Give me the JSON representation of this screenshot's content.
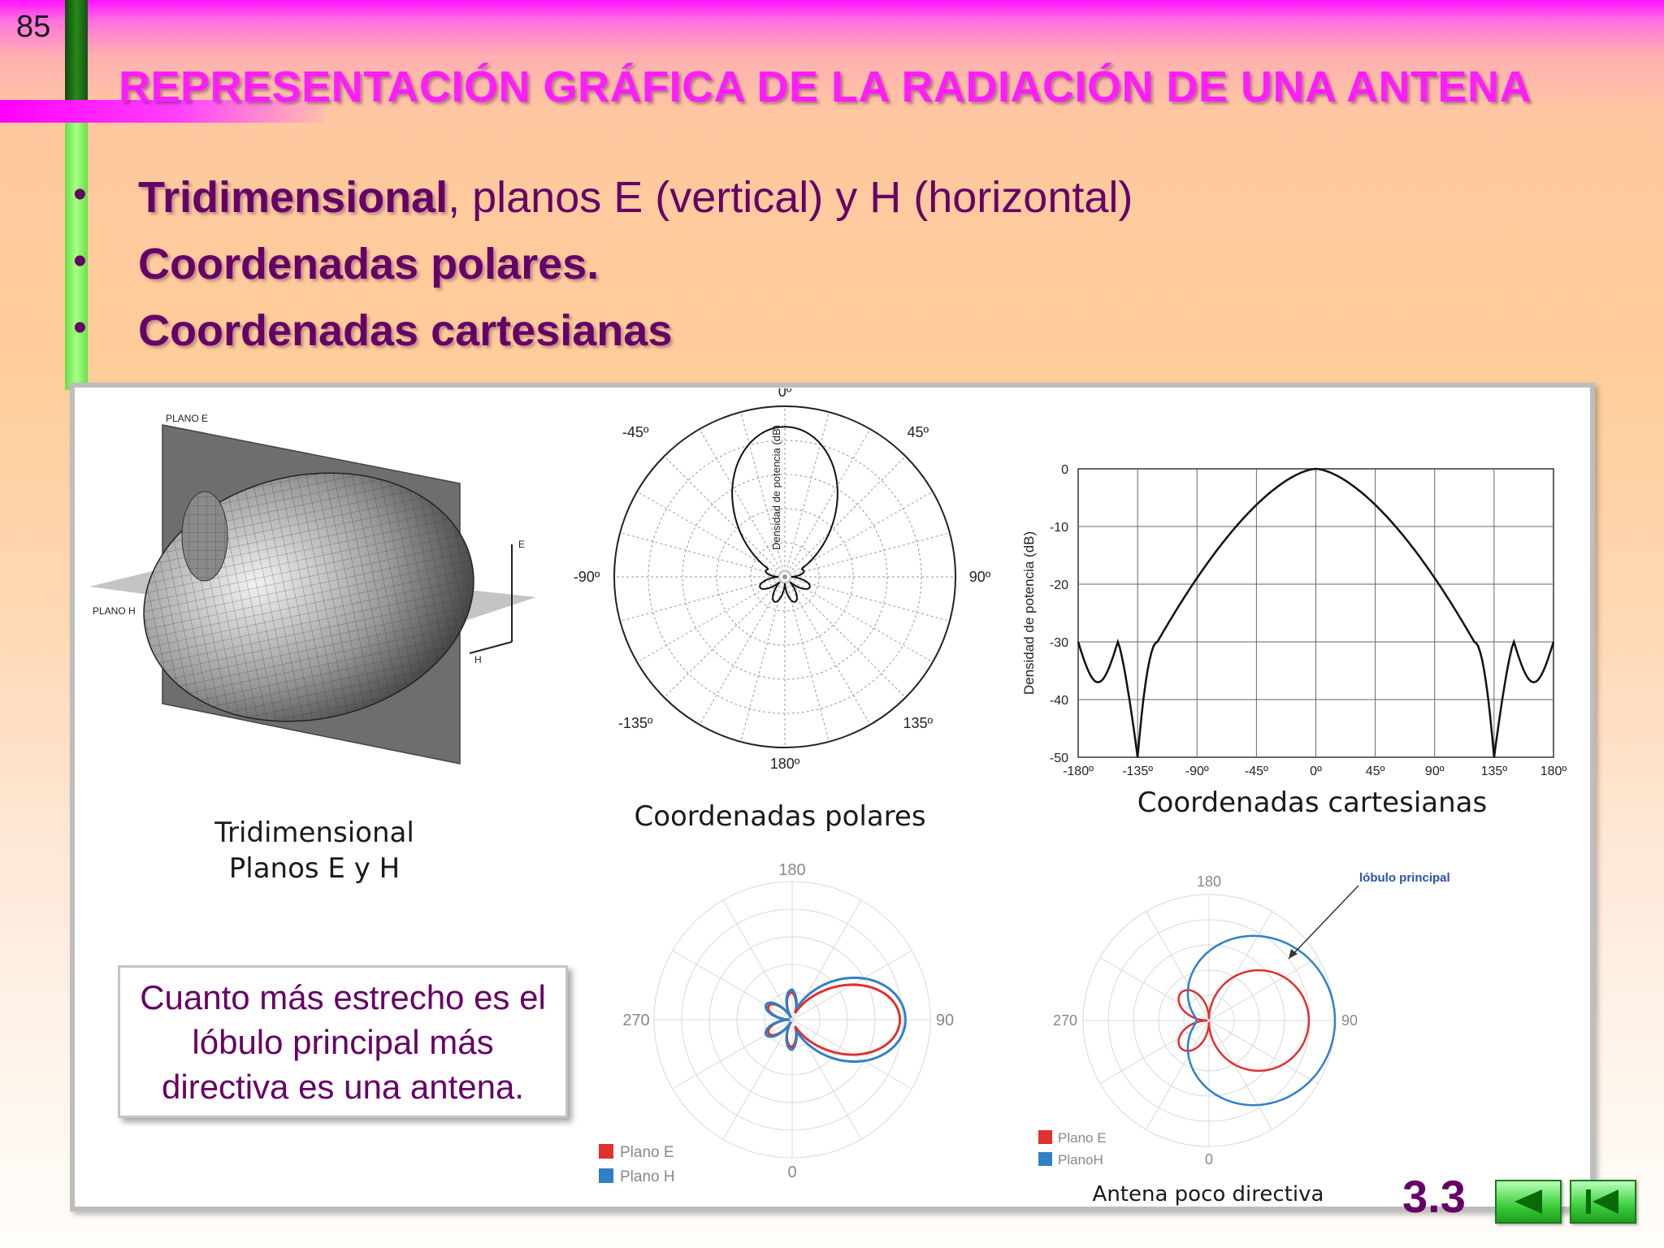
{
  "slide_number": "85",
  "title": "REPRESENTACIÓN GRÁFICA DE LA RADIACIÓN DE UNA ANTENA",
  "bullets": [
    {
      "bold": "Tridimensional",
      "rest": ", planos E (vertical) y H (horizontal)"
    },
    {
      "bold": "Coordenadas polares.",
      "rest": ""
    },
    {
      "bold": "Coordenadas cartesianas",
      "rest": ""
    }
  ],
  "bullet_symbol": "•",
  "figures": {
    "three_d": {
      "plane_e_label": "PLANO E",
      "plane_h_label": "PLANO H",
      "axis_e": "E",
      "axis_h": "H",
      "caption_line1": "Tridimensional",
      "caption_line2": "Planos E y H"
    },
    "polar": {
      "angle_labels": [
        "0º",
        "45º",
        "90º",
        "135º",
        "180º",
        "-135º",
        "-90º",
        "-45º"
      ],
      "radial_axis_label": "Densidad de potencia (dB)",
      "caption": "Coordenadas polares"
    },
    "cartesian": {
      "ylabel": "Densidad de potencia (dB)",
      "yticks": [
        "0",
        "-10",
        "-20",
        "-30",
        "-40",
        "-50"
      ],
      "xticks": [
        "-180º",
        "-135º",
        "-90º",
        "-45º",
        "0º",
        "45º",
        "90º",
        "135º",
        "180º"
      ],
      "caption": "Coordenadas cartesianas"
    },
    "polar_directive": {
      "angle_labels": [
        "180",
        "90",
        "0",
        "270"
      ],
      "legend": [
        "Plano E",
        "Plano H"
      ]
    },
    "polar_low_directive": {
      "angle_labels": [
        "180",
        "90",
        "0",
        "270"
      ],
      "legend": [
        "Plano E",
        "PlanoH"
      ],
      "annotation": "lóbulo principal",
      "caption": "Antena poco directiva"
    }
  },
  "note": "Cuanto más estrecho es el lóbulo principal más directiva es una antena.",
  "section_number": "3.3",
  "nav": {
    "prev_icon": "triangle-left-icon",
    "first_icon": "first-page-icon"
  },
  "colors": {
    "title": "#ff1cff",
    "text": "#660066",
    "plane_e": "#e03030",
    "plane_h": "#3080c8",
    "nav_button": "#3ccf3c"
  }
}
